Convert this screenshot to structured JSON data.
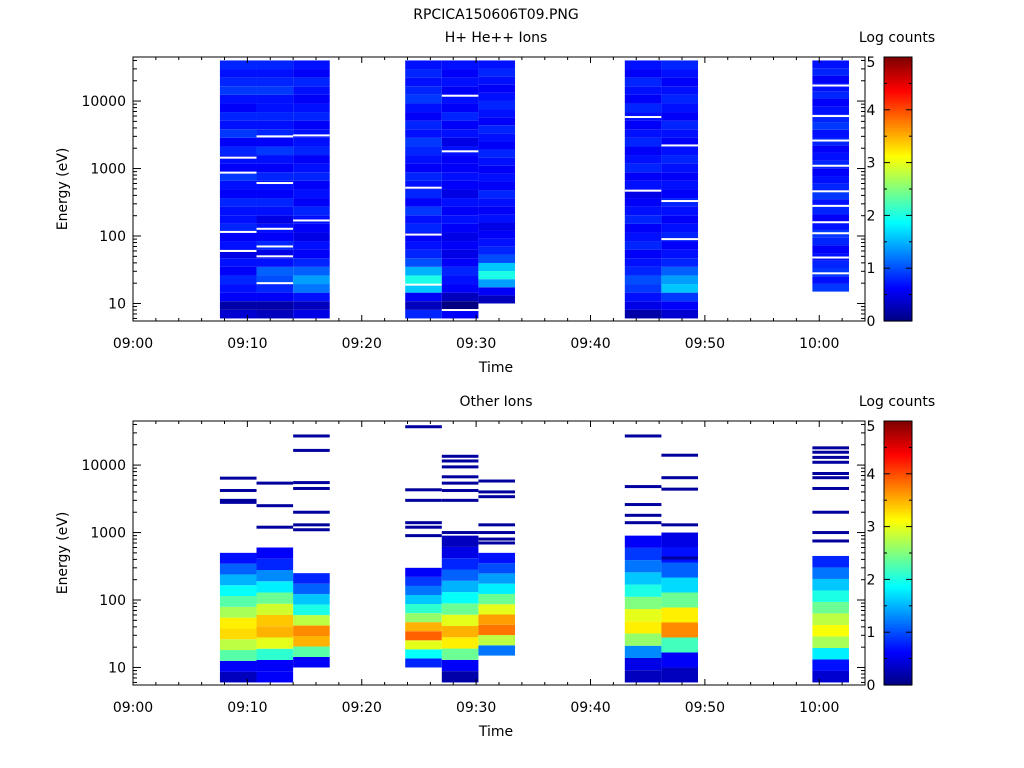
{
  "figure_title": "RPCICA150606T09.PNG",
  "chart_data": [
    {
      "type": "heatmap",
      "title": "H+ He++ Ions",
      "xlabel": "Time",
      "ylabel": "Energy (eV)",
      "colorbar_label": "Log counts",
      "x_ticks": [
        "09:00",
        "09:10",
        "09:20",
        "09:30",
        "09:40",
        "09:50",
        "10:00"
      ],
      "x_range_minutes": [
        0,
        64
      ],
      "y_scale": "log",
      "y_ticks": [
        "10",
        "100",
        "1000",
        "10000"
      ],
      "y_range": [
        5.5,
        45000
      ],
      "colorbar_ticks": [
        "0",
        "1",
        "2",
        "3",
        "4",
        "5"
      ],
      "colorbar_range": [
        0,
        5
      ],
      "colormap": "jet",
      "columns": [
        {
          "t_start": "09:07.6",
          "t_end": "09:10.8",
          "e_min": 6,
          "e_max": 40000,
          "levels": [
            0.4,
            0.2,
            0.6,
            0.7,
            0.8,
            0.6,
            0.7,
            0.5,
            0.7,
            0.6,
            0.8,
            0.7,
            0.7,
            0.8,
            0.6,
            0.7,
            0.9,
            0.6,
            0.7,
            0.8,
            0.6,
            0.9,
            0.7,
            0.8,
            0.6,
            0.7,
            0.9,
            0.8,
            0.7,
            0.8
          ],
          "gaps": [
            115,
            60,
            870,
            1450
          ]
        },
        {
          "t_start": "09:10.8",
          "t_end": "09:14.0",
          "e_min": 6,
          "e_max": 40000,
          "levels": [
            0.3,
            0.2,
            0.6,
            0.8,
            1.0,
            1.1,
            0.7,
            0.5,
            0.8,
            0.6,
            0.7,
            0.5,
            0.7,
            0.8,
            0.6,
            0.7,
            0.8,
            0.6,
            0.7,
            0.9,
            0.6,
            0.8,
            0.7,
            0.8,
            0.7,
            0.7,
            0.9,
            0.8,
            0.7,
            0.8
          ],
          "gaps": [
            20,
            50,
            70,
            128,
            610,
            3000
          ]
        },
        {
          "t_start": "09:14.0",
          "t_end": "09:17.2",
          "e_min": 6,
          "e_max": 40000,
          "levels": [
            0.5,
            0.3,
            0.7,
            1.2,
            1.4,
            1.1,
            0.8,
            0.6,
            0.7,
            0.5,
            0.6,
            0.7,
            0.8,
            0.6,
            0.7,
            0.6,
            0.8,
            0.7,
            0.6,
            0.8,
            0.7,
            0.7,
            0.6,
            0.8,
            0.7,
            0.6,
            0.7,
            0.8,
            0.6,
            0.7
          ],
          "gaps": [
            170,
            3100
          ]
        },
        {
          "t_start": "09:23.8",
          "t_end": "09:27.0",
          "e_min": 6,
          "e_max": 40000,
          "levels": [
            0.8,
            0.3,
            0.6,
            1.6,
            2.0,
            1.5,
            1.0,
            0.8,
            0.7,
            0.6,
            0.8,
            0.7,
            0.9,
            0.6,
            0.8,
            0.7,
            0.8,
            0.6,
            0.7,
            0.8,
            0.9,
            0.7,
            0.8,
            0.6,
            0.7,
            0.9,
            0.8,
            0.7,
            0.8,
            0.7
          ],
          "gaps": [
            19,
            105,
            520
          ]
        },
        {
          "t_start": "09:27.0",
          "t_end": "09:30.2",
          "e_min": 6,
          "e_max": 40000,
          "levels": [
            0.6,
            0.0,
            0.3,
            0.6,
            0.7,
            0.8,
            0.6,
            0.5,
            0.6,
            0.5,
            0.6,
            0.7,
            0.6,
            0.7,
            0.5,
            0.6,
            0.7,
            0.6,
            0.6,
            0.7,
            0.5,
            0.7,
            0.6,
            0.8,
            0.6,
            0.7,
            0.6,
            0.7,
            0.6,
            0.7
          ],
          "gaps": [
            8,
            1800,
            12000
          ]
        },
        {
          "t_start": "09:30.2",
          "t_end": "09:33.4",
          "e_min": 10,
          "e_max": 40000,
          "levels": [
            0.3,
            0.6,
            1.4,
            2.0,
            1.6,
            1.0,
            0.8,
            0.7,
            0.6,
            0.5,
            0.7,
            0.6,
            0.7,
            0.8,
            0.6,
            0.7,
            0.6,
            0.7,
            0.8,
            0.6,
            0.7,
            0.8,
            0.6,
            0.7,
            0.8,
            0.7,
            0.6,
            0.7,
            0.8,
            0.7
          ],
          "gaps": []
        },
        {
          "t_start": "09:43.0",
          "t_end": "09:46.2",
          "e_min": 6,
          "e_max": 40000,
          "levels": [
            0.2,
            0.5,
            0.7,
            0.9,
            1.0,
            0.8,
            0.7,
            0.6,
            0.8,
            0.7,
            0.6,
            0.8,
            0.7,
            0.6,
            0.5,
            0.7,
            0.6,
            0.8,
            0.7,
            0.6,
            0.8,
            0.7,
            0.6,
            0.7,
            0.8,
            0.6,
            0.7,
            0.8,
            0.6,
            0.7
          ],
          "gaps": [
            470,
            5800
          ]
        },
        {
          "t_start": "09:46.2",
          "t_end": "09:49.4",
          "e_min": 6,
          "e_max": 40000,
          "levels": [
            0.4,
            0.6,
            0.9,
            1.6,
            1.4,
            1.1,
            0.8,
            0.7,
            0.6,
            0.8,
            0.7,
            0.6,
            0.7,
            0.8,
            0.6,
            0.7,
            0.6,
            0.7,
            0.8,
            0.7,
            0.6,
            0.7,
            0.8,
            0.6,
            0.7,
            0.8,
            0.7,
            0.6,
            0.7,
            0.8
          ],
          "gaps": [
            90,
            330,
            2200
          ]
        },
        {
          "t_start": "09:59.4",
          "t_end": "10:02.6",
          "e_min": 15,
          "e_max": 40000,
          "levels": [
            0.9,
            0.7,
            0.9,
            0.8,
            0.7,
            0.6,
            0.8,
            0.9,
            0.7,
            0.6,
            0.8,
            0.7,
            0.9,
            0.8,
            0.7,
            0.6,
            0.8,
            0.7,
            0.6,
            0.8,
            0.7,
            0.9,
            0.8,
            0.7,
            0.6,
            0.8,
            0.7,
            0.6,
            0.8,
            0.7
          ],
          "gaps": [
            28,
            48,
            110,
            160,
            280,
            460,
            1100,
            2600,
            6000,
            17000
          ]
        }
      ]
    },
    {
      "type": "heatmap",
      "title": "Other Ions",
      "xlabel": "Time",
      "ylabel": "Energy (eV)",
      "colorbar_label": "Log counts",
      "x_ticks": [
        "09:00",
        "09:10",
        "09:20",
        "09:30",
        "09:40",
        "09:50",
        "10:00"
      ],
      "x_range_minutes": [
        0,
        64
      ],
      "y_scale": "log",
      "y_ticks": [
        "10",
        "100",
        "1000",
        "10000"
      ],
      "y_range": [
        5.5,
        45000
      ],
      "colorbar_ticks": [
        "0",
        "1",
        "2",
        "3",
        "4",
        "5"
      ],
      "colorbar_range": [
        0,
        5
      ],
      "colormap": "jet",
      "columns": [
        {
          "t_start": "09:07.6",
          "t_end": "09:10.8",
          "e_min": 6,
          "e_max": 500,
          "levels": [
            0.3,
            0.6,
            2.3,
            2.8,
            3.3,
            3.2,
            2.7,
            2.3,
            1.9,
            1.5,
            1.1,
            0.7
          ],
          "lines": [
            2800,
            3000,
            4200,
            6400
          ]
        },
        {
          "t_start": "09:10.8",
          "t_end": "09:14.0",
          "e_min": 6,
          "e_max": 600,
          "levels": [
            0.6,
            0.6,
            2.1,
            3.0,
            3.5,
            3.4,
            2.9,
            2.4,
            1.8,
            1.3,
            0.8,
            0.6
          ],
          "lines": [
            1200,
            2500,
            5400
          ]
        },
        {
          "t_start": "09:14.0",
          "t_end": "09:17.2",
          "e_min": 10,
          "e_max": 250,
          "levels": [
            0.6,
            2.3,
            3.5,
            3.7,
            2.8,
            2.0,
            1.6,
            1.1,
            0.8
          ],
          "lines": [
            1100,
            1300,
            2000,
            4500,
            5500,
            16500,
            27000
          ]
        },
        {
          "t_start": "09:23.8",
          "t_end": "09:27.0",
          "e_min": 10,
          "e_max": 300,
          "levels": [
            0.8,
            1.9,
            3.0,
            3.9,
            3.5,
            2.6,
            2.1,
            1.6,
            1.2,
            0.9,
            0.6
          ],
          "lines": [
            900,
            1200,
            1400,
            3000,
            4300,
            37000
          ]
        },
        {
          "t_start": "09:27.0",
          "t_end": "09:30.2",
          "e_min": 6,
          "e_max": 900,
          "levels": [
            0.2,
            0.6,
            2.4,
            3.2,
            3.5,
            3.0,
            2.4,
            1.9,
            1.5,
            1.1,
            0.8,
            0.5,
            0.3
          ],
          "lines": [
            1000,
            3000,
            4200,
            5400,
            6700,
            9400,
            11500,
            13500
          ]
        },
        {
          "t_start": "09:30.2",
          "t_end": "09:33.4",
          "e_min": 15,
          "e_max": 500,
          "levels": [
            1.2,
            2.8,
            3.8,
            3.6,
            3.0,
            2.4,
            1.8,
            1.4,
            1.0,
            0.7
          ],
          "lines": [
            700,
            800,
            1000,
            1300,
            3400,
            4000,
            5800
          ]
        },
        {
          "t_start": "09:43.0",
          "t_end": "09:46.2",
          "e_min": 6,
          "e_max": 900,
          "levels": [
            0.3,
            0.5,
            1.3,
            2.6,
            3.2,
            3.0,
            2.5,
            2.0,
            1.6,
            1.2,
            0.9,
            0.6
          ],
          "lines": [
            1400,
            1800,
            2600,
            4800,
            27000
          ]
        },
        {
          "t_start": "09:46.2",
          "t_end": "09:49.4",
          "e_min": 6,
          "e_max": 1000,
          "levels": [
            0.3,
            0.6,
            2.2,
            3.7,
            3.2,
            2.4,
            1.7,
            1.1,
            0.7,
            0.5
          ],
          "lines": [
            420,
            1300,
            4400,
            6500,
            14000
          ]
        },
        {
          "t_start": "09:59.4",
          "t_end": "10:02.6",
          "e_min": 6,
          "e_max": 450,
          "levels": [
            0.4,
            0.7,
            1.8,
            2.7,
            3.1,
            2.8,
            2.4,
            2.0,
            1.6,
            1.2,
            0.8
          ],
          "lines": [
            750,
            1000,
            2000,
            4500,
            6500,
            7500,
            11000,
            13000,
            15500,
            18000
          ]
        }
      ]
    }
  ]
}
